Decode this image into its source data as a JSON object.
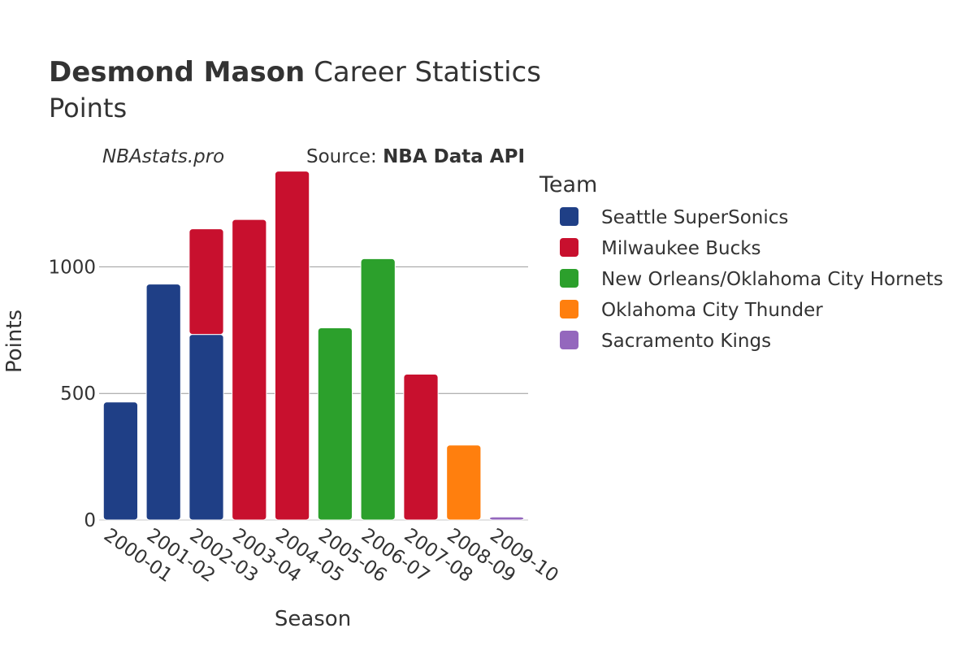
{
  "chart_data": {
    "type": "bar",
    "stacked": true,
    "title": {
      "player": "Desmond Mason",
      "rest": " Career Statistics",
      "subtitle": "Points"
    },
    "watermark": "NBAstats.pro",
    "source": {
      "prefix": "Source: ",
      "name": "NBA Data API"
    },
    "xlabel": "Season",
    "ylabel": "Points",
    "ylim": [
      0,
      1380
    ],
    "yticks": [
      0,
      500,
      1000
    ],
    "ytick_labels": [
      "0",
      "500",
      "1000"
    ],
    "grid": true,
    "legend_title": "Team",
    "legend_position": "right",
    "categories": [
      "2000-01",
      "2001-02",
      "2002-03",
      "2003-04",
      "2004-05",
      "2005-06",
      "2006-07",
      "2007-08",
      "2008-09",
      "2009-10"
    ],
    "series": [
      {
        "name": "Seattle SuperSonics",
        "color": "#1f3f86",
        "values": [
          466,
          932,
          733,
          0,
          0,
          0,
          0,
          0,
          0,
          0
        ]
      },
      {
        "name": "Milwaukee Bucks",
        "color": "#c8102e",
        "values": [
          0,
          0,
          417,
          1187,
          1378,
          0,
          0,
          576,
          0,
          0
        ]
      },
      {
        "name": "New Orleans/Oklahoma City Hornets",
        "color": "#2ca02c",
        "values": [
          0,
          0,
          0,
          0,
          0,
          759,
          1032,
          0,
          0,
          0
        ]
      },
      {
        "name": "Oklahoma City Thunder",
        "color": "#ff7f0e",
        "values": [
          0,
          0,
          0,
          0,
          0,
          0,
          0,
          0,
          296,
          0
        ]
      },
      {
        "name": "Sacramento Kings",
        "color": "#9467bd",
        "values": [
          0,
          0,
          0,
          0,
          0,
          0,
          0,
          0,
          0,
          12
        ]
      }
    ]
  }
}
